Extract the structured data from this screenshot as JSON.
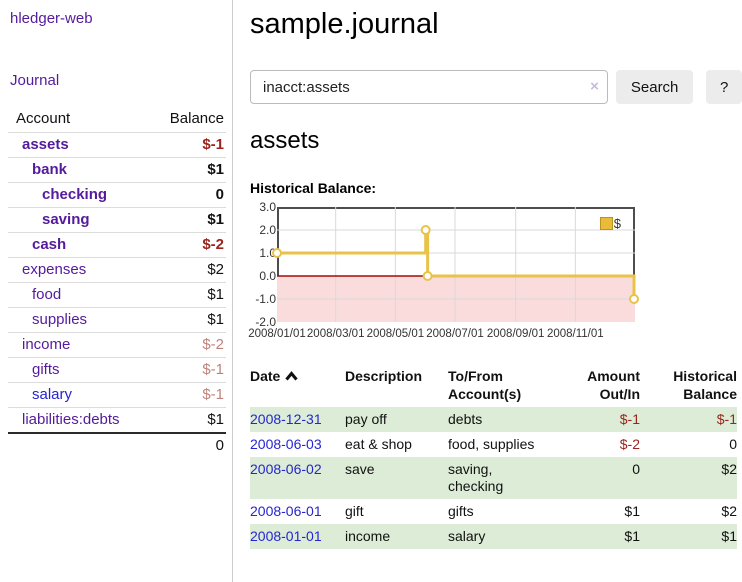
{
  "colors": {
    "link_purple": "#541b9c",
    "link_blue": "#2525d2",
    "negative_strong": "#9a251c",
    "negative_soft": "#bd837b",
    "row_stripe_green": "#dcecd6",
    "button_gray": "#ececec",
    "chart_line_gold": "#e9c349",
    "chart_negative_fill": "#fbdcdc",
    "chart_zero_line": "#a30b0b"
  },
  "sidebar": {
    "brand": "hledger-web",
    "journal_link": "Journal",
    "account_header": "Account",
    "balance_header": "Balance",
    "accounts": [
      {
        "name": "assets",
        "balance": "$-1"
      },
      {
        "name": "bank",
        "balance": "$1"
      },
      {
        "name": "checking",
        "balance": "0"
      },
      {
        "name": "saving",
        "balance": "$1"
      },
      {
        "name": "cash",
        "balance": "$-2"
      },
      {
        "name": "expenses",
        "balance": "$2"
      },
      {
        "name": "food",
        "balance": "$1"
      },
      {
        "name": "supplies",
        "balance": "$1"
      },
      {
        "name": "income",
        "balance": "$-2"
      },
      {
        "name": "gifts",
        "balance": "$-1"
      },
      {
        "name": "salary",
        "balance": "$-1"
      },
      {
        "name": "liabilities:debts",
        "balance": "$1"
      }
    ],
    "total": "0"
  },
  "header": {
    "title": "sample.journal"
  },
  "search": {
    "value": "inacct:assets",
    "clear_label": "×",
    "search_button": "Search",
    "help_button": "?"
  },
  "account_page": {
    "heading": "assets",
    "chart_title": "Historical Balance:"
  },
  "chart_data": {
    "type": "line",
    "style": "step-after",
    "series": [
      {
        "name": "$",
        "x": [
          "2008-01-01",
          "2008-06-01",
          "2008-06-03",
          "2008-12-31"
        ],
        "y": [
          1,
          2,
          0,
          -1
        ]
      }
    ],
    "x_ticks": [
      "2008/01/01",
      "2008/03/01",
      "2008/05/01",
      "2008/07/01",
      "2008/09/01",
      "2008/11/01"
    ],
    "y_ticks": [
      3.0,
      2.0,
      1.0,
      0.0,
      -1.0,
      -2.0
    ],
    "ylim": [
      -2,
      3
    ],
    "xlim": [
      "2008-01-01",
      "2009-01-01"
    ],
    "grid": true,
    "legend_position": "top-right",
    "line_color": "#e9c349",
    "marker": "open-circle",
    "negative_region_fill": "#fbdcdc",
    "zero_line_color": "#a30b0b",
    "grid_color": "#d9d9d9"
  },
  "register": {
    "headers": {
      "date": "Date",
      "description": "Description",
      "accounts": "To/From Account(s)",
      "amount": "Amount Out/In",
      "balance": "Historical Balance"
    },
    "rows": [
      {
        "date": "2008-12-31",
        "description": "pay off",
        "accounts": "debts",
        "amount": "$-1",
        "balance": "$-1"
      },
      {
        "date": "2008-06-03",
        "description": "eat & shop",
        "accounts": "food, supplies",
        "amount": "$-2",
        "balance": "0"
      },
      {
        "date": "2008-06-02",
        "description": "save",
        "accounts": "saving, checking",
        "amount": "0",
        "balance": "$2"
      },
      {
        "date": "2008-06-01",
        "description": "gift",
        "accounts": "gifts",
        "amount": "$1",
        "balance": "$2"
      },
      {
        "date": "2008-01-01",
        "description": "income",
        "accounts": "salary",
        "amount": "$1",
        "balance": "$1"
      }
    ]
  }
}
